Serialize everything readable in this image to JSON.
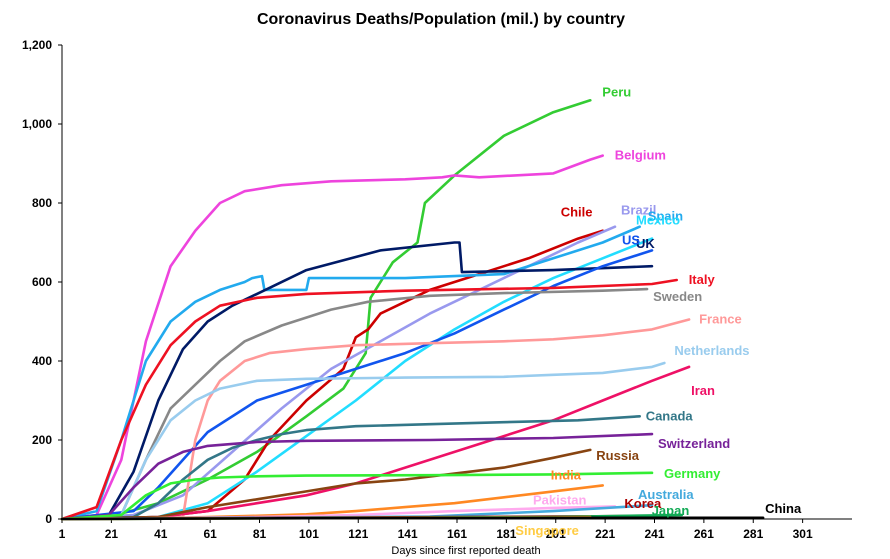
{
  "chart_data": {
    "type": "line",
    "title": "Coronavirus Deaths/Population (mil.) by country",
    "xlabel": "Days since first reported death",
    "ylabel": "",
    "xlim": [
      1,
      321
    ],
    "ylim": [
      0,
      1200
    ],
    "x_ticks": [
      "1",
      "21",
      "41",
      "61",
      "81",
      "101",
      "121",
      "141",
      "161",
      "181",
      "201",
      "221",
      "241",
      "261",
      "281",
      "301"
    ],
    "y_ticks": [
      "0",
      "200",
      "400",
      "600",
      "800",
      "1,000",
      "1,200"
    ],
    "grid": false,
    "series": [
      {
        "name": "Peru",
        "color": "#33cc33",
        "x": [
          1,
          20,
          40,
          60,
          80,
          100,
          115,
          124,
          126,
          135,
          145,
          148,
          160,
          180,
          200,
          215
        ],
        "y": [
          0,
          5,
          40,
          100,
          170,
          260,
          330,
          420,
          560,
          650,
          700,
          800,
          870,
          970,
          1030,
          1060
        ]
      },
      {
        "name": "Belgium",
        "color": "#ee44dd",
        "x": [
          1,
          15,
          25,
          35,
          45,
          55,
          65,
          75,
          90,
          110,
          140,
          155,
          160,
          170,
          200,
          215,
          220
        ],
        "y": [
          0,
          10,
          150,
          450,
          640,
          730,
          800,
          830,
          845,
          855,
          860,
          865,
          870,
          865,
          875,
          910,
          920
        ]
      },
      {
        "name": "Chile",
        "color": "#cc0000",
        "x": [
          1,
          40,
          60,
          75,
          85,
          100,
          115,
          120,
          125,
          130,
          150,
          170,
          190,
          210,
          220
        ],
        "y": [
          0,
          5,
          20,
          100,
          200,
          300,
          380,
          460,
          480,
          520,
          580,
          620,
          660,
          710,
          730
        ]
      },
      {
        "name": "Brazil",
        "color": "#9999ee",
        "x": [
          1,
          30,
          50,
          70,
          90,
          110,
          130,
          150,
          170,
          190,
          210,
          225
        ],
        "y": [
          0,
          10,
          60,
          170,
          280,
          380,
          450,
          520,
          580,
          640,
          700,
          740
        ]
      },
      {
        "name": "Spain",
        "color": "#22aaee",
        "x": [
          1,
          15,
          25,
          35,
          45,
          55,
          65,
          75,
          78,
          82,
          83,
          100,
          101,
          140,
          160,
          180,
          200,
          220,
          235
        ],
        "y": [
          0,
          20,
          200,
          400,
          500,
          550,
          580,
          600,
          610,
          615,
          580,
          580,
          610,
          610,
          615,
          620,
          660,
          700,
          740
        ]
      },
      {
        "name": "Mexico",
        "color": "#22ddff",
        "x": [
          1,
          40,
          60,
          80,
          100,
          120,
          140,
          160,
          180,
          200,
          220,
          240
        ],
        "y": [
          0,
          5,
          40,
          120,
          210,
          300,
          400,
          480,
          550,
          610,
          660,
          710
        ]
      },
      {
        "name": "UK",
        "color": "#001a66",
        "x": [
          1,
          20,
          30,
          40,
          50,
          60,
          70,
          80,
          100,
          130,
          160,
          162,
          163,
          200,
          240
        ],
        "y": [
          0,
          10,
          120,
          300,
          430,
          500,
          540,
          570,
          630,
          680,
          700,
          700,
          625,
          630,
          640
        ]
      },
      {
        "name": "US",
        "color": "#1155ee",
        "x": [
          1,
          30,
          40,
          60,
          80,
          100,
          120,
          140,
          160,
          180,
          200,
          220,
          240
        ],
        "y": [
          0,
          20,
          80,
          220,
          300,
          340,
          380,
          420,
          470,
          530,
          590,
          640,
          680
        ]
      },
      {
        "name": "Italy",
        "color": "#ee1122",
        "x": [
          1,
          15,
          25,
          35,
          45,
          55,
          65,
          80,
          100,
          140,
          200,
          240,
          250
        ],
        "y": [
          0,
          30,
          200,
          340,
          440,
          500,
          540,
          560,
          570,
          578,
          585,
          595,
          605
        ]
      },
      {
        "name": "Sweden",
        "color": "#888888",
        "x": [
          1,
          25,
          35,
          45,
          55,
          65,
          75,
          90,
          110,
          125,
          150,
          180,
          220,
          238
        ],
        "y": [
          0,
          10,
          150,
          280,
          340,
          400,
          450,
          490,
          530,
          550,
          565,
          572,
          578,
          582
        ]
      },
      {
        "name": "France",
        "color": "#ff9999",
        "x": [
          1,
          50,
          55,
          60,
          65,
          75,
          85,
          100,
          120,
          150,
          180,
          200,
          220,
          240,
          255
        ],
        "y": [
          0,
          5,
          200,
          300,
          350,
          400,
          420,
          430,
          440,
          445,
          450,
          455,
          465,
          480,
          505
        ]
      },
      {
        "name": "Netherlands",
        "color": "#99ccee",
        "x": [
          1,
          25,
          35,
          45,
          55,
          65,
          80,
          100,
          140,
          180,
          200,
          220,
          240,
          245
        ],
        "y": [
          0,
          10,
          150,
          250,
          300,
          330,
          350,
          355,
          358,
          360,
          365,
          370,
          385,
          395
        ]
      },
      {
        "name": "Iran",
        "color": "#ee1166",
        "x": [
          1,
          40,
          60,
          80,
          100,
          120,
          140,
          160,
          180,
          200,
          220,
          240,
          255
        ],
        "y": [
          0,
          5,
          20,
          40,
          60,
          90,
          130,
          170,
          210,
          250,
          300,
          350,
          385
        ]
      },
      {
        "name": "Canada",
        "color": "#337788",
        "x": [
          1,
          30,
          40,
          50,
          60,
          70,
          80,
          90,
          100,
          120,
          150,
          180,
          210,
          235
        ],
        "y": [
          0,
          5,
          40,
          100,
          150,
          180,
          200,
          215,
          225,
          235,
          240,
          245,
          250,
          260
        ]
      },
      {
        "name": "Switzerland",
        "color": "#772299",
        "x": [
          1,
          20,
          30,
          40,
          50,
          60,
          70,
          80,
          100,
          150,
          200,
          240
        ],
        "y": [
          0,
          10,
          80,
          140,
          170,
          185,
          190,
          195,
          198,
          200,
          205,
          215
        ]
      },
      {
        "name": "Russia",
        "color": "#884411",
        "x": [
          1,
          40,
          60,
          80,
          100,
          120,
          140,
          160,
          180,
          200,
          215
        ],
        "y": [
          0,
          5,
          30,
          50,
          70,
          90,
          100,
          115,
          130,
          155,
          175
        ]
      },
      {
        "name": "Germany",
        "color": "#33ee33",
        "x": [
          1,
          25,
          35,
          45,
          55,
          65,
          80,
          100,
          150,
          200,
          240
        ],
        "y": [
          0,
          10,
          60,
          90,
          100,
          105,
          108,
          110,
          111,
          113,
          117
        ]
      },
      {
        "name": "India",
        "color": "#ff8822",
        "x": [
          1,
          40,
          60,
          80,
          100,
          120,
          140,
          160,
          180,
          200,
          220
        ],
        "y": [
          0,
          2,
          5,
          8,
          12,
          20,
          30,
          40,
          55,
          70,
          85
        ]
      },
      {
        "name": "Pakistan",
        "color": "#ffaaee",
        "x": [
          1,
          40,
          80,
          120,
          160,
          200,
          225
        ],
        "y": [
          0,
          2,
          5,
          10,
          20,
          28,
          32
        ]
      },
      {
        "name": "Australia",
        "color": "#44aadd",
        "x": [
          1,
          50,
          100,
          150,
          200,
          240
        ],
        "y": [
          0,
          2,
          4,
          6,
          20,
          35
        ]
      },
      {
        "name": "Korea",
        "color": "#aa0000",
        "x": [
          1,
          100,
          200,
          245
        ],
        "y": [
          0,
          3,
          6,
          8
        ]
      },
      {
        "name": "Japan",
        "color": "#11aa55",
        "x": [
          1,
          100,
          200,
          252
        ],
        "y": [
          0,
          2,
          5,
          10
        ]
      },
      {
        "name": "Singapore",
        "color": "#ffcc44",
        "x": [
          1,
          100,
          200,
          215
        ],
        "y": [
          0,
          2,
          4,
          5
        ]
      },
      {
        "name": "China",
        "color": "#000000",
        "x": [
          1,
          100,
          200,
          285
        ],
        "y": [
          0,
          2,
          3,
          3
        ]
      }
    ]
  }
}
